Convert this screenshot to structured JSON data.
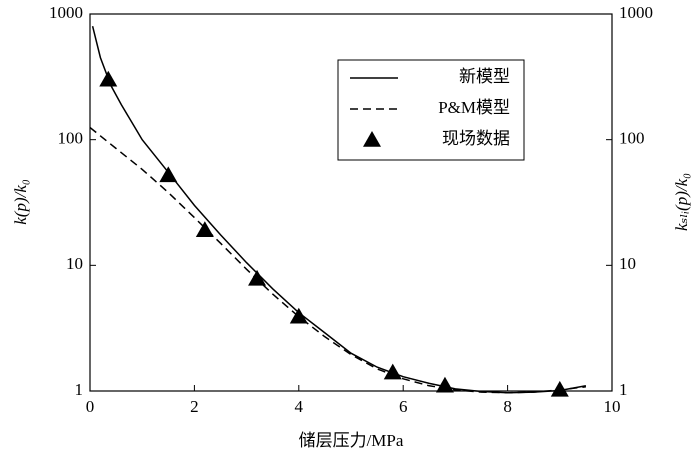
{
  "chart_data": {
    "type": "line",
    "x_label": "储层压力/MPa",
    "y_label": "k(p)/k₀",
    "y2_label": "kₛₗᵢ(p)/k₀",
    "xlim": [
      0,
      10
    ],
    "xticks": [
      0,
      2,
      4,
      6,
      8,
      10
    ],
    "ylim": [
      1,
      1000
    ],
    "yticks": [
      1,
      10,
      100,
      1000
    ],
    "y2lim": [
      1,
      1000
    ],
    "y2ticks": [
      1,
      10,
      100,
      1000
    ],
    "log_y": true,
    "legend": "top-right",
    "series": [
      {
        "name": "新模型",
        "style": "solid",
        "color": "#000000",
        "x": [
          0.05,
          0.2,
          0.4,
          0.6,
          1,
          1.5,
          2,
          2.5,
          3,
          3.5,
          4,
          4.5,
          5,
          5.5,
          6,
          6.5,
          7,
          7.5,
          8,
          8.5,
          9,
          9.5
        ],
        "values": [
          800,
          450,
          270,
          190,
          100,
          55,
          30,
          17.5,
          10.5,
          6.5,
          4.2,
          2.9,
          2.0,
          1.55,
          1.3,
          1.15,
          1.04,
          0.99,
          0.97,
          0.98,
          1.01,
          1.1
        ]
      },
      {
        "name": "P&M模型",
        "style": "dashed",
        "color": "#000000",
        "x": [
          0,
          0.5,
          1,
          1.5,
          2,
          2.5,
          3,
          3.5,
          4,
          4.5,
          5,
          5.5,
          6,
          6.5,
          7,
          7.5,
          8,
          8.5,
          9,
          9.5
        ],
        "values": [
          125,
          85,
          58,
          38,
          24,
          15,
          9.3,
          5.9,
          3.9,
          2.7,
          1.95,
          1.5,
          1.25,
          1.1,
          1.02,
          0.98,
          0.97,
          0.98,
          1.02,
          1.08
        ]
      },
      {
        "name": "现场数据",
        "style": "marker",
        "color": "#000000",
        "x": [
          0.35,
          1.5,
          2.2,
          3.2,
          4,
          5.8,
          6.8,
          9
        ],
        "values": [
          300,
          52,
          19,
          7.8,
          3.9,
          1.4,
          1.1,
          1.02
        ]
      }
    ]
  }
}
